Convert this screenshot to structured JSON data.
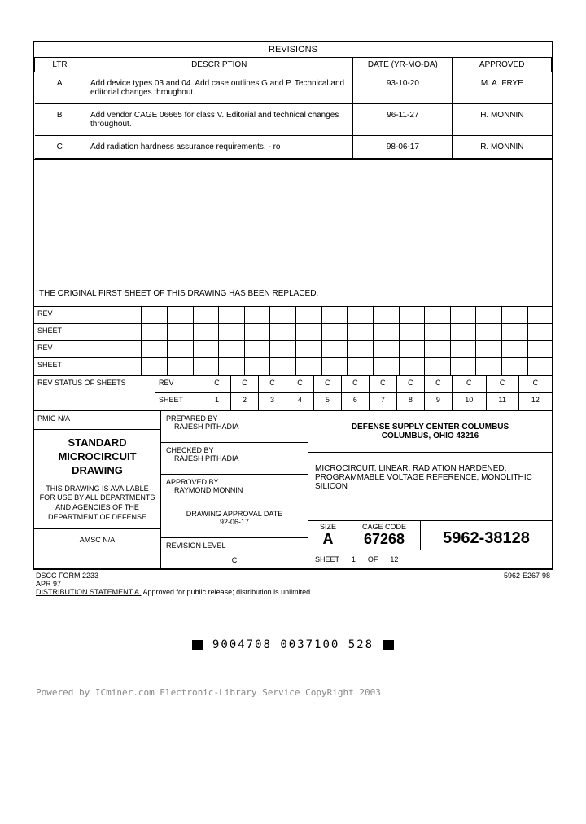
{
  "revisions": {
    "header": "REVISIONS",
    "columns": {
      "ltr": "LTR",
      "desc": "DESCRIPTION",
      "date": "DATE (YR-MO-DA)",
      "approved": "APPROVED"
    },
    "rows": [
      {
        "ltr": "A",
        "desc": "Add device types 03 and 04. Add case outlines G and P. Technical and editorial changes throughout.",
        "date": "93-10-20",
        "approved": "M. A. FRYE"
      },
      {
        "ltr": "B",
        "desc": "Add vendor CAGE 06665 for class V. Editorial and technical changes throughout.",
        "date": "96-11-27",
        "approved": "H. MONNIN"
      },
      {
        "ltr": "C",
        "desc": "Add radiation hardness assurance requirements. - ro",
        "date": "98-06-17",
        "approved": "R. MONNIN"
      }
    ]
  },
  "replaced_note": "THE ORIGINAL FIRST SHEET OF THIS DRAWING HAS BEEN REPLACED.",
  "grid_labels": {
    "rev": "REV",
    "sheet": "SHEET"
  },
  "rev_status": {
    "label": "REV STATUS OF SHEETS",
    "rev_label": "REV",
    "sheet_label": "SHEET",
    "revs": [
      "C",
      "C",
      "C",
      "C",
      "C",
      "C",
      "C",
      "C",
      "C",
      "C",
      "C",
      "C"
    ],
    "sheets": [
      "1",
      "2",
      "3",
      "4",
      "5",
      "6",
      "7",
      "8",
      "9",
      "10",
      "11",
      "12"
    ]
  },
  "title_block": {
    "pmic": "PMIC N/A",
    "std_title_1": "STANDARD",
    "std_title_2": "MICROCIRCUIT",
    "std_title_3": "DRAWING",
    "availability": "THIS DRAWING IS AVAILABLE FOR USE BY ALL DEPARTMENTS AND AGENCIES OF THE DEPARTMENT OF DEFENSE",
    "amsc": "AMSC N/A",
    "prepared_label": "PREPARED BY",
    "prepared_name": "RAJESH PITHADIA",
    "checked_label": "CHECKED BY",
    "checked_name": "RAJESH PITHADIA",
    "approved_label": "APPROVED BY",
    "approved_name": "RAYMOND MONNIN",
    "drawing_date_label": "DRAWING APPROVAL DATE",
    "drawing_date": "92-06-17",
    "rev_level_label": "REVISION LEVEL",
    "rev_level": "C",
    "defense_1": "DEFENSE SUPPLY CENTER COLUMBUS",
    "defense_2": "COLUMBUS, OHIO 43216",
    "micro_desc": "MICROCIRCUIT, LINEAR, RADIATION HARDENED, PROGRAMMABLE VOLTAGE REFERENCE, MONOLITHIC SILICON",
    "size_label": "SIZE",
    "size": "A",
    "cage_label": "CAGE CODE",
    "cage": "67268",
    "drawing_no": "5962-38128",
    "sheet_label": "SHEET",
    "sheet_no": "1",
    "of_label": "OF",
    "total_sheets": "12"
  },
  "footer": {
    "form": "DSCC FORM 2233",
    "form_date": "APR 97",
    "dist": "DISTRIBUTION STATEMENT A.",
    "dist_text": "Approved for public release; distribution is unlimited.",
    "right_code": "5962-E267-98"
  },
  "barcode": "9004708 0037100 528",
  "watermark": "Powered by ICminer.com Electronic-Library Service CopyRight 2003"
}
